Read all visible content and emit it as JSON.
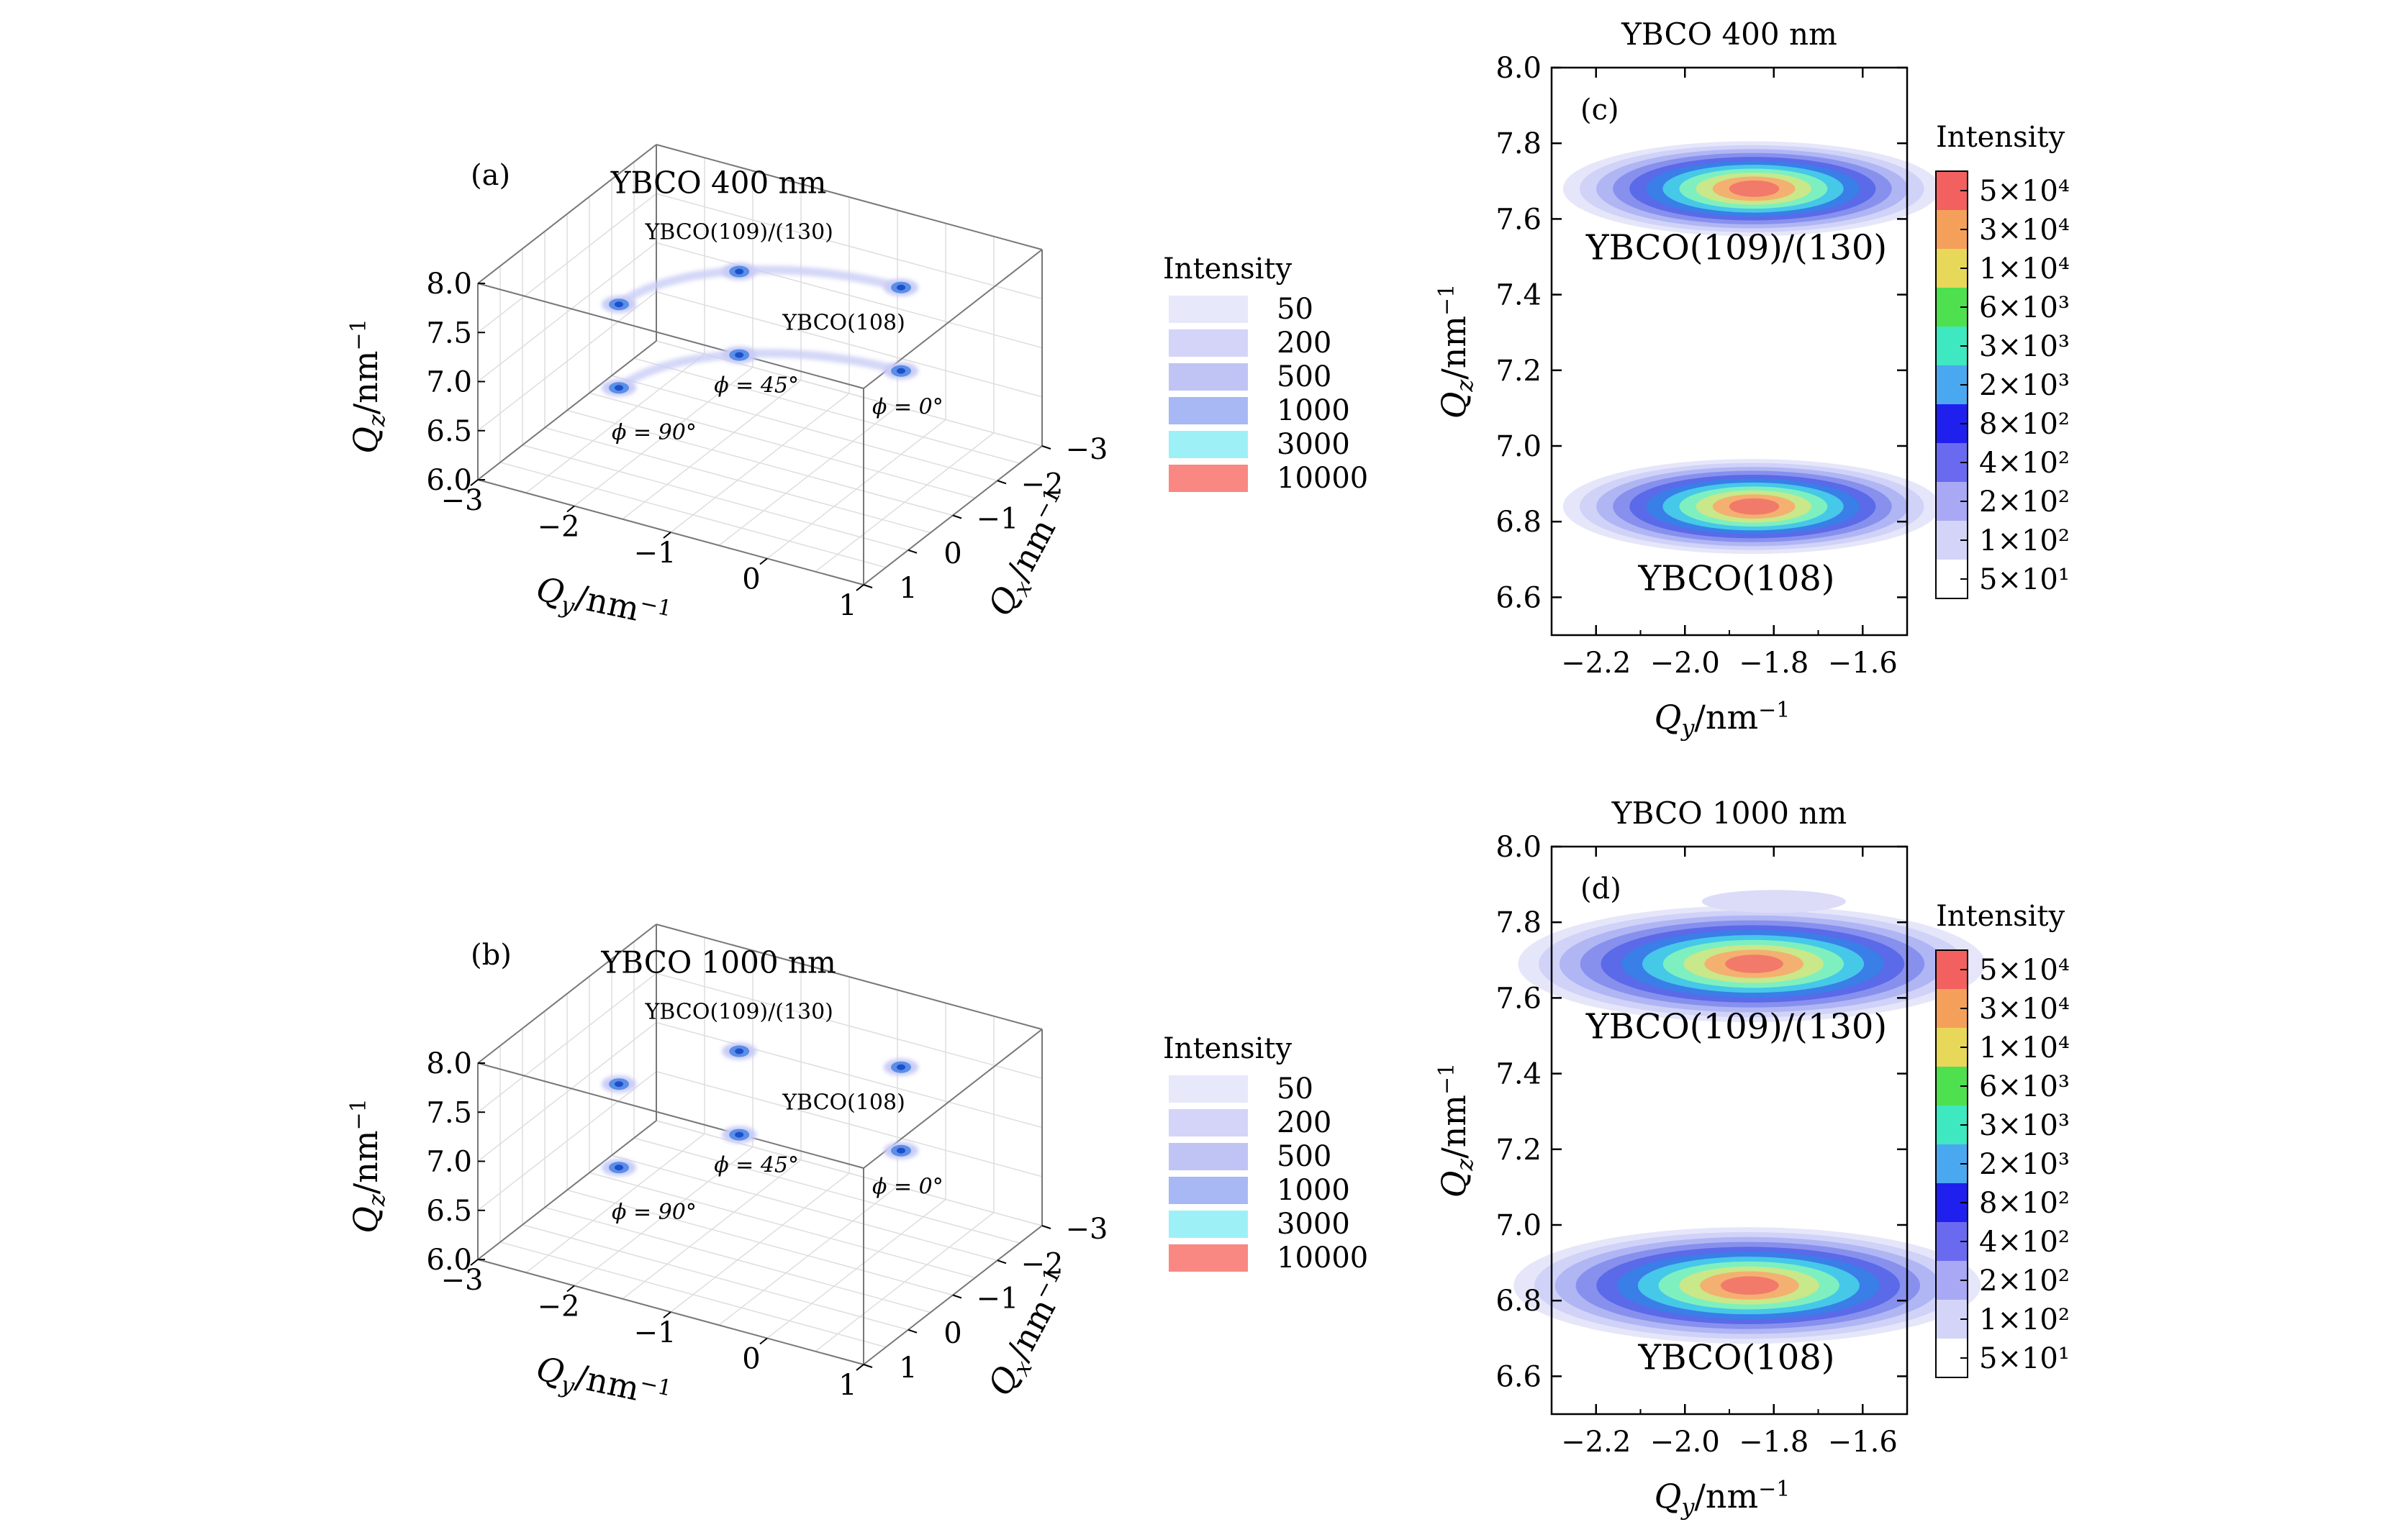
{
  "chart_data": [
    {
      "panel": "(a)",
      "type": "contour",
      "title": "YBCO 400 nm",
      "xlabel": "Q_y/nm^-1",
      "ylabel": "Q_x/nm^-1",
      "zlabel": "Q_z/nm^-1",
      "xlim": [
        -3,
        1
      ],
      "ylim": [
        -3,
        1
      ],
      "zlim": [
        6.0,
        8.0
      ],
      "x_ticks": [
        "−3",
        "−2",
        "−1",
        "0",
        "1"
      ],
      "y_ticks": [
        "−3",
        "−2",
        "−1",
        "0",
        "1"
      ],
      "z_ticks": [
        "8.0",
        "7.5",
        "7.0",
        "6.5",
        "6.0"
      ],
      "legend_title": "Intensity",
      "legend": [
        {
          "label": "50",
          "color": "#e8e8fb"
        },
        {
          "label": "200",
          "color": "#d4d4f8"
        },
        {
          "label": "500",
          "color": "#bfc4f5"
        },
        {
          "label": "1000",
          "color": "#a7b8f4"
        },
        {
          "label": "3000",
          "color": "#9ef0f7"
        },
        {
          "label": "10000",
          "color": "#f98882"
        }
      ],
      "annotations": [
        "YBCO(109)/(130)",
        "YBCO(108)",
        "ϕ = 45°",
        "ϕ = 0°",
        "ϕ = 90°"
      ],
      "peaks": [
        {
          "name": "YBCO(108)",
          "phi": "90°",
          "qy": -2.0,
          "qx": 0.0,
          "qz": 6.85
        },
        {
          "name": "YBCO(108)",
          "phi": "45°",
          "qy": -1.4,
          "qx": -1.4,
          "qz": 6.85
        },
        {
          "name": "YBCO(108)",
          "phi": "0°",
          "qy": 0.0,
          "qx": -2.0,
          "qz": 6.85
        },
        {
          "name": "YBCO(109)/(130)",
          "phi": "90°",
          "qy": -2.0,
          "qx": 0.0,
          "qz": 7.7
        },
        {
          "name": "YBCO(109)/(130)",
          "phi": "45°",
          "qy": -1.4,
          "qx": -1.4,
          "qz": 7.7
        },
        {
          "name": "YBCO(109)/(130)",
          "phi": "0°",
          "qy": 0.0,
          "qx": -2.0,
          "qz": 7.7
        }
      ]
    },
    {
      "panel": "(b)",
      "type": "contour",
      "title": "YBCO 1000 nm",
      "xlabel": "Q_y/nm^-1",
      "ylabel": "Q_x/nm^-1",
      "zlabel": "Q_z/nm^-1",
      "xlim": [
        -3,
        1
      ],
      "ylim": [
        -3,
        1
      ],
      "zlim": [
        6.0,
        8.0
      ],
      "x_ticks": [
        "−3",
        "−2",
        "−1",
        "0",
        "1"
      ],
      "y_ticks": [
        "−3",
        "−2",
        "−1",
        "0",
        "1"
      ],
      "z_ticks": [
        "8.0",
        "7.5",
        "7.0",
        "6.5",
        "6.0"
      ],
      "legend_title": "Intensity",
      "legend": [
        {
          "label": "50",
          "color": "#e8e8fb"
        },
        {
          "label": "200",
          "color": "#d4d4f8"
        },
        {
          "label": "500",
          "color": "#bfc4f5"
        },
        {
          "label": "1000",
          "color": "#a7b8f4"
        },
        {
          "label": "3000",
          "color": "#9ef0f7"
        },
        {
          "label": "10000",
          "color": "#f98882"
        }
      ],
      "annotations": [
        "YBCO(109)/(130)",
        "YBCO(108)",
        "ϕ = 45°",
        "ϕ = 0°",
        "ϕ = 90°"
      ],
      "peaks": [
        {
          "name": "YBCO(108)",
          "phi": "90°",
          "qy": -2.0,
          "qx": 0.0,
          "qz": 6.85
        },
        {
          "name": "YBCO(108)",
          "phi": "45°",
          "qy": -1.4,
          "qx": -1.4,
          "qz": 6.85
        },
        {
          "name": "YBCO(108)",
          "phi": "0°",
          "qy": 0.0,
          "qx": -2.0,
          "qz": 6.85
        },
        {
          "name": "YBCO(109)/(130)",
          "phi": "90°",
          "qy": -2.0,
          "qx": 0.0,
          "qz": 7.7
        },
        {
          "name": "YBCO(109)/(130)",
          "phi": "45°",
          "qy": -1.4,
          "qx": -1.4,
          "qz": 7.7
        },
        {
          "name": "YBCO(109)/(130)",
          "phi": "0°",
          "qy": 0.0,
          "qx": -2.0,
          "qz": 7.7
        }
      ]
    },
    {
      "panel": "(c)",
      "type": "contour",
      "title": "YBCO 400 nm",
      "xlabel": "Q_y/nm^-1",
      "ylabel": "Q_z/nm^-1",
      "xlim": [
        -2.3,
        -1.5
      ],
      "ylim": [
        6.5,
        8.0
      ],
      "x_ticks": [
        "−2.2",
        "−2.0",
        "−1.8",
        "−1.6"
      ],
      "y_ticks": [
        "8.0",
        "7.8",
        "7.6",
        "7.4",
        "7.2",
        "7.0",
        "6.8",
        "6.6"
      ],
      "colorbar_title": "Intensity",
      "colorbar_labels": [
        "5×10⁴",
        "3×10⁴",
        "1×10⁴",
        "6×10³",
        "3×10³",
        "2×10³",
        "8×10²",
        "4×10²",
        "2×10²",
        "1×10²",
        "5×10¹"
      ],
      "colorbar_colors": [
        "#f26060",
        "#f5a05a",
        "#e8d85a",
        "#4fe04f",
        "#3ee8c0",
        "#4aa8f0",
        "#2020ee",
        "#6a6af0",
        "#a8a8f4",
        "#d4d4f8",
        "#ffffff"
      ],
      "peaks": [
        {
          "name": "YBCO(109)/(130)",
          "qy": -1.85,
          "qz": 7.68
        },
        {
          "name": "YBCO(108)",
          "qy": -1.85,
          "qz": 6.84
        }
      ]
    },
    {
      "panel": "(d)",
      "type": "contour",
      "title": "YBCO 1000 nm",
      "xlabel": "Q_y/nm^-1",
      "ylabel": "Q_z/nm^-1",
      "xlim": [
        -2.3,
        -1.5
      ],
      "ylim": [
        6.5,
        8.0
      ],
      "x_ticks": [
        "−2.2",
        "−2.0",
        "−1.8",
        "−1.6"
      ],
      "y_ticks": [
        "8.0",
        "7.8",
        "7.6",
        "7.4",
        "7.2",
        "7.0",
        "6.8",
        "6.6"
      ],
      "colorbar_title": "Intensity",
      "colorbar_labels": [
        "5×10⁴",
        "3×10⁴",
        "1×10⁴",
        "6×10³",
        "3×10³",
        "2×10³",
        "8×10²",
        "4×10²",
        "2×10²",
        "1×10²",
        "5×10¹"
      ],
      "colorbar_colors": [
        "#f26060",
        "#f5a05a",
        "#e8d85a",
        "#4fe04f",
        "#3ee8c0",
        "#4aa8f0",
        "#2020ee",
        "#6a6af0",
        "#a8a8f4",
        "#d4d4f8",
        "#ffffff"
      ],
      "peaks": [
        {
          "name": "YBCO(109)/(130)",
          "qy": -1.85,
          "qz": 7.69
        },
        {
          "name": "YBCO(108)",
          "qy": -1.86,
          "qz": 6.84
        }
      ]
    }
  ],
  "labels": {
    "peak_upper": "YBCO(109)/(130)",
    "peak_lower": "YBCO(108)"
  }
}
